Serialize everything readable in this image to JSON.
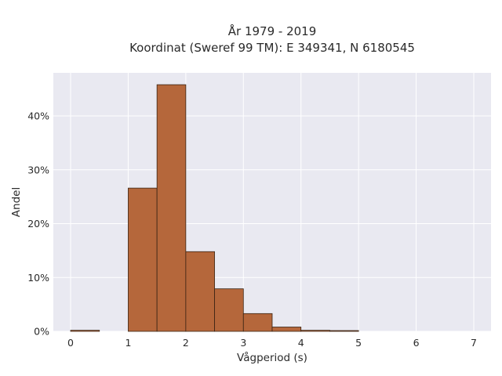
{
  "chart_data": {
    "type": "bar",
    "title_line1": "År 1979 - 2019",
    "title_line2": "Koordinat (Sweref 99 TM): E 349341, N 6180545",
    "xlabel": "Vågperiod (s)",
    "ylabel": "Andel",
    "bin_width": 0.5,
    "bins": [
      {
        "x0": 0.0,
        "value": 0.2
      },
      {
        "x0": 0.5,
        "value": 0.0
      },
      {
        "x0": 1.0,
        "value": 26.6
      },
      {
        "x0": 1.5,
        "value": 45.8
      },
      {
        "x0": 2.0,
        "value": 14.8
      },
      {
        "x0": 2.5,
        "value": 7.9
      },
      {
        "x0": 3.0,
        "value": 3.3
      },
      {
        "x0": 3.5,
        "value": 0.8
      },
      {
        "x0": 4.0,
        "value": 0.2
      },
      {
        "x0": 4.5,
        "value": 0.05
      },
      {
        "x0": 5.0,
        "value": 0.0
      },
      {
        "x0": 5.5,
        "value": 0.0
      },
      {
        "x0": 6.0,
        "value": 0.0
      },
      {
        "x0": 6.5,
        "value": 0.0
      }
    ],
    "x_ticks": [
      0,
      1,
      2,
      3,
      4,
      5,
      6,
      7
    ],
    "x_tick_labels": [
      "0",
      "1",
      "2",
      "3",
      "4",
      "5",
      "6",
      "7"
    ],
    "y_ticks": [
      0,
      10,
      20,
      30,
      40
    ],
    "y_tick_labels": [
      "0%",
      "10%",
      "20%",
      "30%",
      "40%"
    ],
    "xlim": [
      -0.3,
      7.3
    ],
    "ylim": [
      0,
      48
    ],
    "grid": true,
    "colors": {
      "bar_fill": "#b5673b",
      "bar_stroke": "#3a2414",
      "plot_background": "#e9e9f1",
      "grid": "#ffffff"
    }
  }
}
